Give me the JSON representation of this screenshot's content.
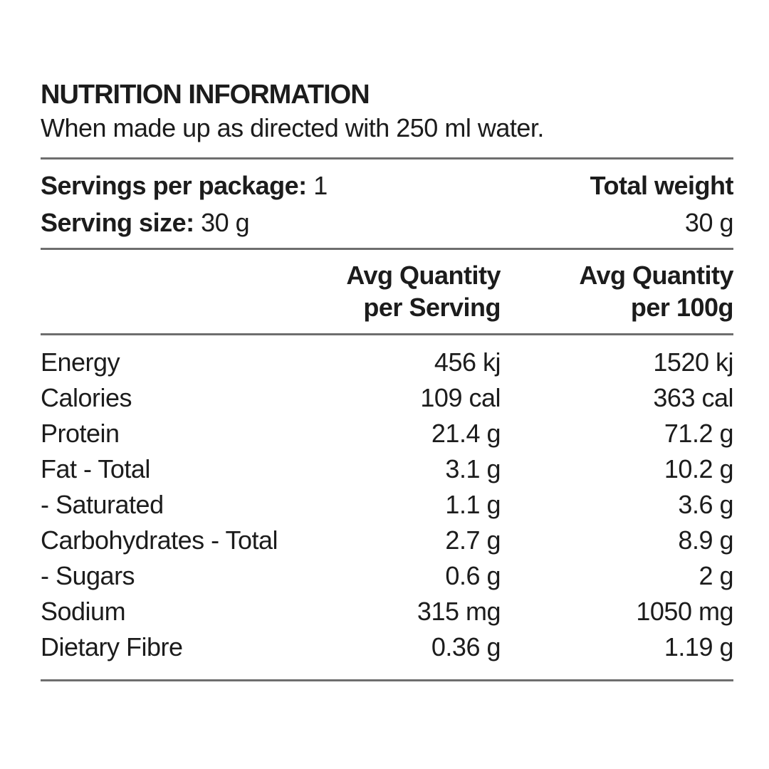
{
  "panel": {
    "title": "NUTRITION INFORMATION",
    "subtitle": "When made up as directed with 250 ml water."
  },
  "serving_info": {
    "servings_per_package_label": "Servings per package:",
    "servings_per_package_value": "1",
    "serving_size_label": "Serving size:",
    "serving_size_value": "30 g",
    "total_weight_label": "Total weight",
    "total_weight_value": "30 g"
  },
  "table": {
    "columns": {
      "per_serving_line1": "Avg Quantity",
      "per_serving_line2": "per Serving",
      "per_100g_line1": "Avg Quantity",
      "per_100g_line2": "per 100g"
    },
    "rows": [
      {
        "label": "Energy",
        "per_serving": "456 kj",
        "per_100g": "1520 kj"
      },
      {
        "label": "Calories",
        "per_serving": "109 cal",
        "per_100g": "363 cal"
      },
      {
        "label": "Protein",
        "per_serving": "21.4 g",
        "per_100g": "71.2 g"
      },
      {
        "label": "Fat - Total",
        "per_serving": "3.1 g",
        "per_100g": "10.2 g"
      },
      {
        "label": "- Saturated",
        "per_serving": "1.1 g",
        "per_100g": "3.6 g"
      },
      {
        "label": "Carbohydrates - Total",
        "per_serving": "2.7 g",
        "per_100g": "8.9 g"
      },
      {
        "label": "- Sugars",
        "per_serving": "0.6 g",
        "per_100g": "2 g"
      },
      {
        "label": "Sodium",
        "per_serving": "315 mg",
        "per_100g": "1050 mg"
      },
      {
        "label": "Dietary Fibre",
        "per_serving": "0.36 g",
        "per_100g": "1.19 g"
      }
    ]
  },
  "colors": {
    "background": "#ffffff",
    "text": "#1c1c1c",
    "rule": "#6e6e6e"
  }
}
